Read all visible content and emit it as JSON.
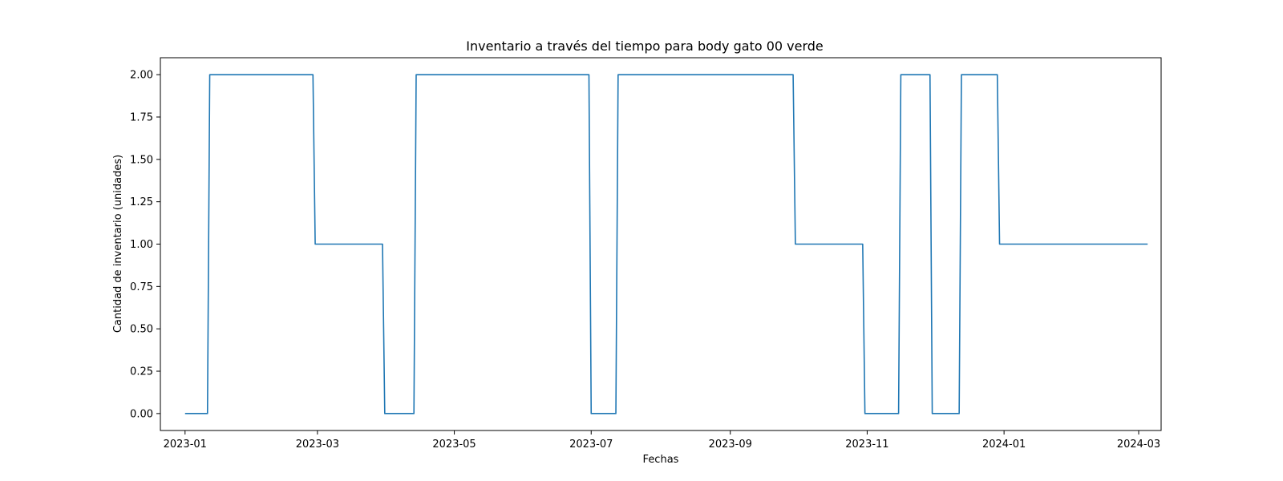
{
  "chart_data": {
    "type": "line",
    "title": "Inventario a través del tiempo para body gato 00 verde",
    "xlabel": "Fechas",
    "ylabel": "Cantidad de inventario (unidades)",
    "xlim": [
      "2022-12-21",
      "2024-03-11"
    ],
    "ylim": [
      -0.1,
      2.1
    ],
    "x_ticks": [
      "2023-01",
      "2023-03",
      "2023-05",
      "2023-07",
      "2023-09",
      "2023-11",
      "2024-01",
      "2024-03"
    ],
    "y_ticks": [
      "0.00",
      "0.25",
      "0.50",
      "0.75",
      "1.00",
      "1.25",
      "1.50",
      "1.75",
      "2.00"
    ],
    "grid": false,
    "series": [
      {
        "color": "#1f77b4",
        "points": [
          [
            "2023-01-01",
            0
          ],
          [
            "2023-01-11",
            0
          ],
          [
            "2023-01-12",
            2
          ],
          [
            "2023-02-27",
            2
          ],
          [
            "2023-02-28",
            1
          ],
          [
            "2023-03-30",
            1
          ],
          [
            "2023-03-31",
            0
          ],
          [
            "2023-04-13",
            0
          ],
          [
            "2023-04-14",
            2
          ],
          [
            "2023-06-30",
            2
          ],
          [
            "2023-07-01",
            0
          ],
          [
            "2023-07-12",
            0
          ],
          [
            "2023-07-13",
            2
          ],
          [
            "2023-09-29",
            2
          ],
          [
            "2023-09-30",
            1
          ],
          [
            "2023-10-30",
            1
          ],
          [
            "2023-10-31",
            0
          ],
          [
            "2023-11-15",
            0
          ],
          [
            "2023-11-16",
            2
          ],
          [
            "2023-11-29",
            2
          ],
          [
            "2023-11-30",
            0
          ],
          [
            "2023-12-12",
            0
          ],
          [
            "2023-12-13",
            2
          ],
          [
            "2023-12-29",
            2
          ],
          [
            "2023-12-30",
            1
          ],
          [
            "2024-03-05",
            1
          ]
        ]
      }
    ]
  }
}
